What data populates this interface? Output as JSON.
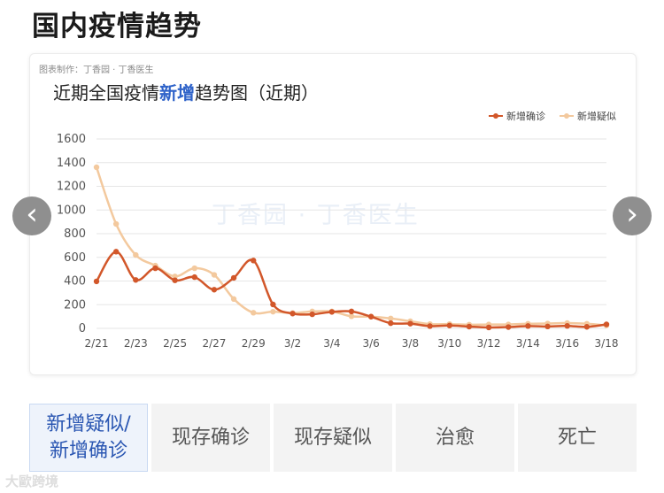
{
  "page_title": "国内疫情趋势",
  "card": {
    "credit": "图表制作：丁香园 · 丁香医生",
    "title_pre": "近期全国疫情",
    "title_hl": "新增",
    "title_post": "趋势图（近期）",
    "watermark": "丁香园 · 丁香医生"
  },
  "nav": {
    "left_icon": "chevron-left-icon",
    "right_icon": "chevron-right-icon",
    "left_glyph": "‹",
    "right_glyph": "›"
  },
  "tabs": [
    {
      "label": "新增疑似/新增确诊",
      "active": true
    },
    {
      "label": "现存确诊",
      "active": false
    },
    {
      "label": "现存疑似",
      "active": false
    },
    {
      "label": "治愈",
      "active": false
    },
    {
      "label": "死亡",
      "active": false
    }
  ],
  "corner_mark": "大歐跨境",
  "colors": {
    "confirmed": "#d2572a",
    "suspected": "#f3c99e",
    "grid": "#e6e6e6",
    "axis_text": "#555555"
  },
  "chart_data": {
    "type": "line",
    "title": "近期全国疫情新增趋势图（近期）",
    "x": [
      "2/21",
      "2/22",
      "2/23",
      "2/24",
      "2/25",
      "2/26",
      "2/27",
      "2/28",
      "2/29",
      "3/1",
      "3/2",
      "3/3",
      "3/4",
      "3/5",
      "3/6",
      "3/7",
      "3/8",
      "3/9",
      "3/10",
      "3/11",
      "3/12",
      "3/13",
      "3/14",
      "3/15",
      "3/16",
      "3/17",
      "3/18"
    ],
    "x_tick_labels": [
      "2/21",
      "2/23",
      "2/25",
      "2/27",
      "2/29",
      "3/2",
      "3/4",
      "3/6",
      "3/8",
      "3/10",
      "3/12",
      "3/14",
      "3/16",
      "3/18"
    ],
    "y_ticks": [
      0,
      200,
      400,
      600,
      800,
      1000,
      1200,
      1400,
      1600
    ],
    "ylim": [
      0,
      1600
    ],
    "grid": true,
    "legend_position": "top-right",
    "series": [
      {
        "name": "新增确诊",
        "values": [
          397,
          648,
          409,
          508,
          406,
          433,
          327,
          427,
          573,
          202,
          125,
          119,
          139,
          143,
          99,
          44,
          40,
          19,
          24,
          15,
          8,
          11,
          20,
          16,
          21,
          13,
          34
        ],
        "color": "#d2572a"
      },
      {
        "name": "新增疑似",
        "values": [
          1361,
          882,
          620,
          530,
          439,
          508,
          452,
          248,
          132,
          141,
          129,
          143,
          143,
          102,
          99,
          84,
          60,
          36,
          36,
          31,
          33,
          33,
          39,
          41,
          45,
          39,
          25
        ],
        "color": "#f3c99e"
      }
    ]
  }
}
